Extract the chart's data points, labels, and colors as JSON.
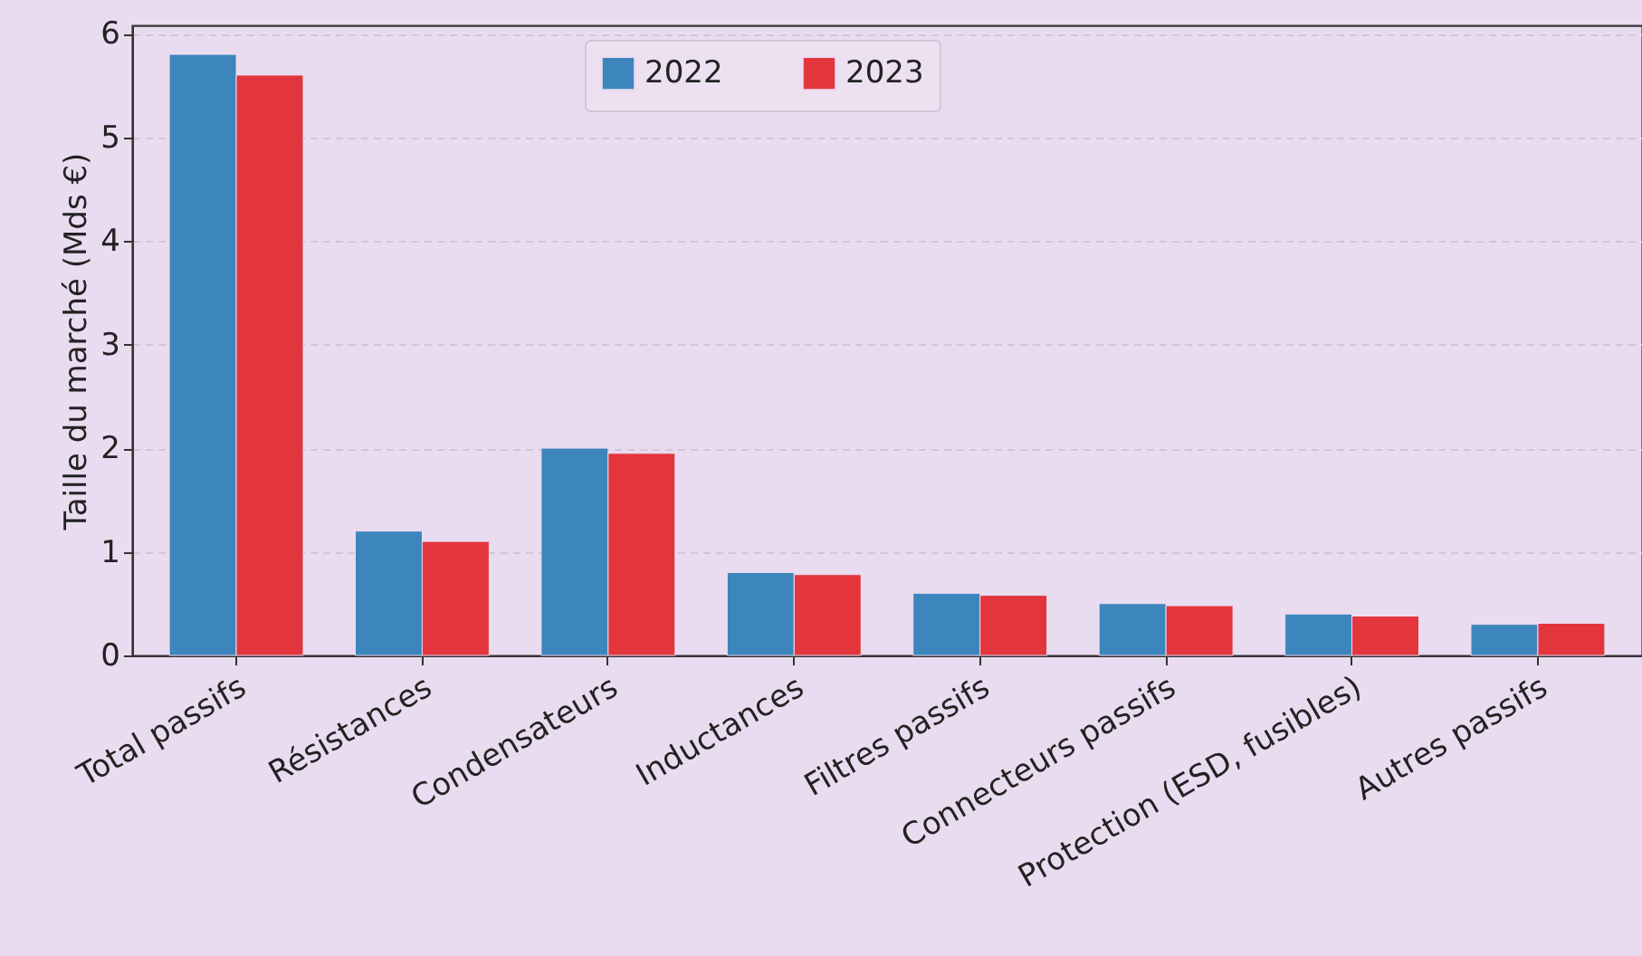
{
  "chart_data": {
    "type": "bar",
    "ylabel": "Taille du marché (Mds €)",
    "categories": [
      "Total passifs",
      "Résistances",
      "Condensateurs",
      "Inductances",
      "Filtres passifs",
      "Connecteurs passifs",
      "Protection (ESD, fusibles)",
      "Autres passifs"
    ],
    "series": [
      {
        "name": "2022",
        "color": "#3d85bd",
        "values": [
          5.8,
          1.2,
          2.0,
          0.8,
          0.6,
          0.5,
          0.4,
          0.3
        ]
      },
      {
        "name": "2023",
        "color": "#e3353c",
        "values": [
          5.6,
          1.1,
          1.95,
          0.78,
          0.58,
          0.48,
          0.38,
          0.31
        ]
      }
    ],
    "ylim": [
      0,
      6.08
    ],
    "yticks": [
      0,
      1,
      2,
      3,
      4,
      5,
      6
    ],
    "grid": "y",
    "legend": "top"
  }
}
